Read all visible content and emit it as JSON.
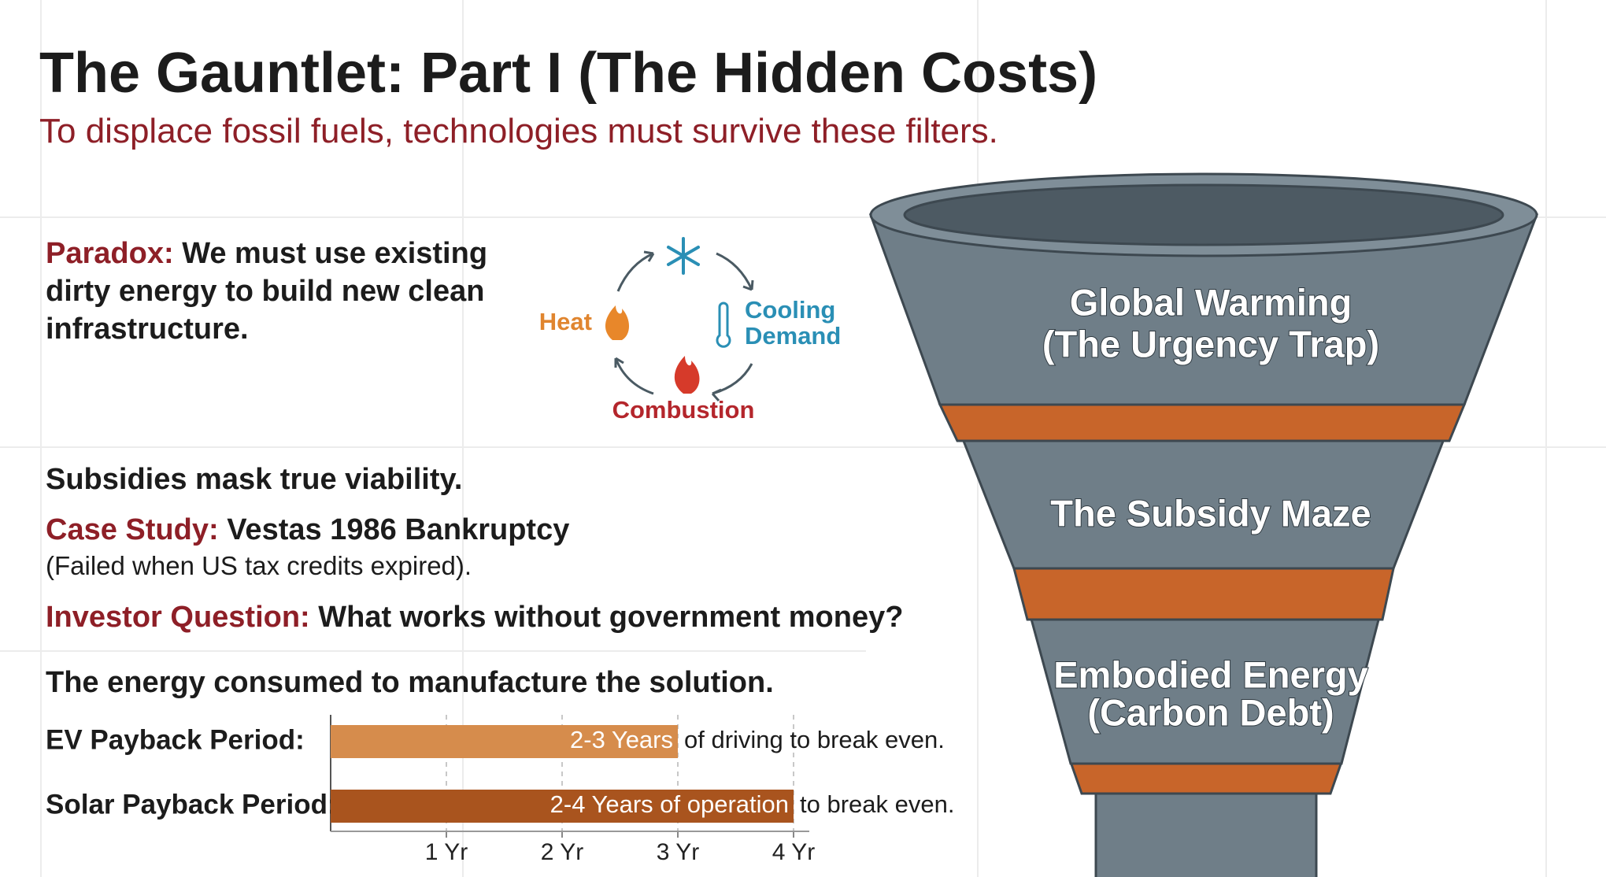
{
  "header": {
    "title": "The Gauntlet: Part I (The Hidden Costs)",
    "subtitle": "To displace fossil fuels, technologies must survive these filters."
  },
  "paradox": {
    "label": "Paradox:",
    "text": "We must use existing dirty energy to build new clean infrastructure."
  },
  "cycle": {
    "heat": "Heat",
    "cooling": [
      "Cooling",
      "Demand"
    ],
    "combustion": "Combustion"
  },
  "subsidies": {
    "heading": "Subsidies mask true viability.",
    "case_label": "Case Study:",
    "case_text": "Vestas 1986 Bankruptcy",
    "case_note": "(Failed when US tax credits expired).",
    "investor_label": "Investor Question:",
    "investor_text": "What works without government money?"
  },
  "embodied": {
    "heading": "The energy consumed to manufacture the solution."
  },
  "chart_data": {
    "type": "hbar",
    "categories": [
      "EV Payback Period:",
      "Solar Payback Period:"
    ],
    "values": [
      3,
      4
    ],
    "value_labels": [
      "2-3 Years",
      "2-4 Years of operation"
    ],
    "annotations": [
      "of driving to break even.",
      "to break even."
    ],
    "colors": [
      "#d68c4c",
      "#a9541e"
    ],
    "xlim": [
      0,
      4
    ],
    "xticks": [
      {
        "value": 1,
        "label": "1 Yr"
      },
      {
        "value": 2,
        "label": "2 Yr"
      },
      {
        "value": 3,
        "label": "3 Yr"
      },
      {
        "value": 4,
        "label": "4 Yr"
      }
    ],
    "grid": true
  },
  "funnel": {
    "stages": [
      {
        "title": "Global Warming",
        "subtitle": "(The Urgency Trap)"
      },
      {
        "title": "The Subsidy Maze"
      },
      {
        "title": "Embodied Energy",
        "subtitle": "(Carbon Debt)"
      }
    ]
  }
}
